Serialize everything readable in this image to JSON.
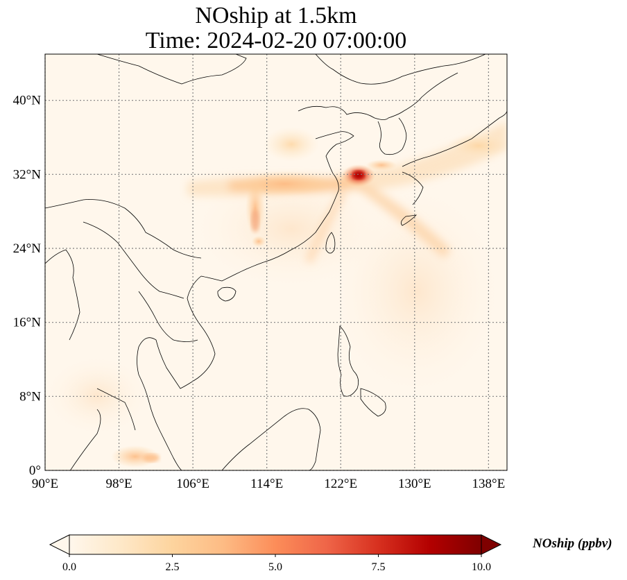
{
  "figure": {
    "title_line1": "NOship at 1.5km",
    "title_line2": "Time: 2024-02-20 07:00:00"
  },
  "map": {
    "lon_range": [
      90,
      140
    ],
    "lat_range": [
      0,
      45
    ],
    "gridlines": "dotted",
    "lon_ticks": [
      "90°E",
      "98°E",
      "106°E",
      "114°E",
      "122°E",
      "130°E",
      "138°E"
    ],
    "lat_ticks": [
      "0°",
      "8°N",
      "16°N",
      "24°N",
      "32°N",
      "40°N"
    ],
    "colormap": "OrRd",
    "hotspot": "Yangtze River Delta / East China Sea near 124°E, 32°N"
  },
  "colorbar": {
    "label": "NOship (ppbv)",
    "ticks": [
      "0.0",
      "2.5",
      "5.0",
      "7.5",
      "10.0"
    ],
    "range": [
      0,
      10
    ],
    "extend": "both",
    "colors": [
      "#fff7ec",
      "#fee8c8",
      "#fdd49e",
      "#fdbb84",
      "#fc8d59",
      "#ef6548",
      "#d7301f",
      "#b30000",
      "#7f0000"
    ]
  }
}
